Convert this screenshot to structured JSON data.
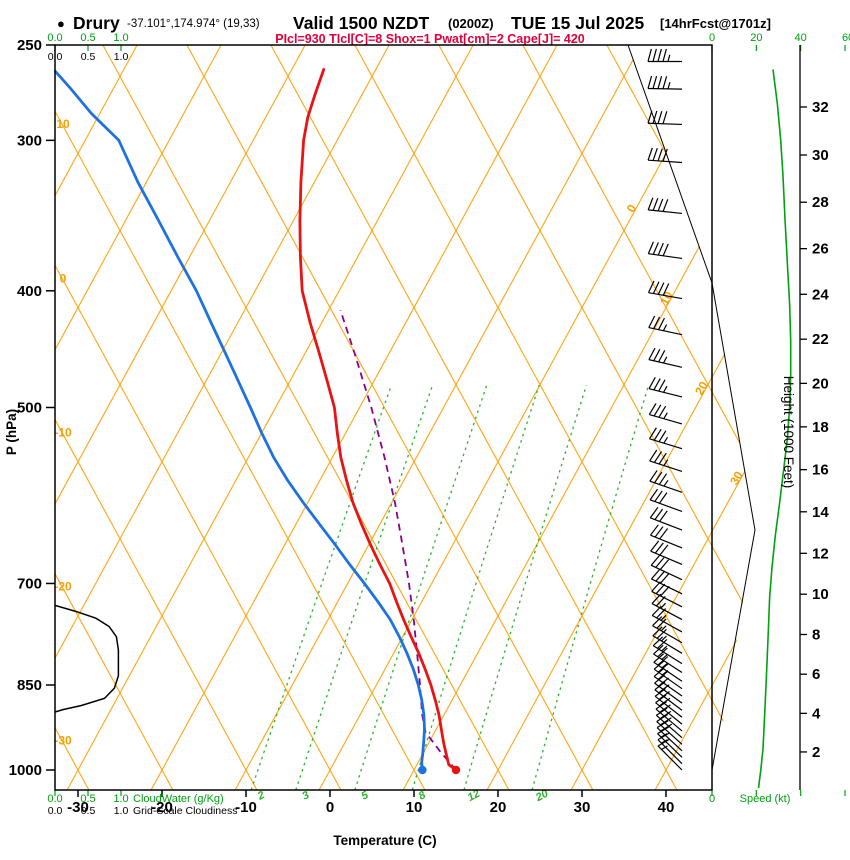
{
  "header": {
    "bullet": "●",
    "station": "Drury",
    "coords": "-37.101°,174.974° (19,33)",
    "valid": "Valid 1500 NZDT",
    "zulu": "(0200Z)",
    "date": "TUE 15 Jul 2025",
    "fcst": "[14hrFcst@1701z]",
    "indices": "PIcl=930 TIcl[C]=8 Shox=1 Pwat[cm]=2 Cape[J]= 420"
  },
  "axis_labels": {
    "pressure": "P (hPa)",
    "temperature": "Temperature (C)",
    "height": "Height (1000 Feet)",
    "speed": "Speed (kt)",
    "cloudwater": "CloudWater (g/Kg)",
    "cloudiness": "Grid-Scale Cloudiness"
  },
  "chart_data": {
    "type": "skewt_sounding",
    "pressure_axis": {
      "label": "P (hPa)",
      "scale": "log",
      "ticks": [
        250,
        300,
        400,
        500,
        700,
        850,
        1000
      ],
      "range": [
        250,
        1039
      ]
    },
    "temp_axis": {
      "label": "Temperature (C)",
      "ticks": [
        -30,
        -20,
        -10,
        0,
        10,
        20,
        30,
        40
      ]
    },
    "height_axis": {
      "label": "Height (1000 Feet)",
      "units": "kft",
      "ticks": [
        2,
        4,
        6,
        8,
        10,
        12,
        14,
        16,
        18,
        20,
        22,
        24,
        26,
        28,
        30,
        32
      ]
    },
    "speed_axis": {
      "label": "Speed (kt)",
      "range": [
        0,
        60
      ],
      "top_labels": [
        0,
        20,
        40,
        60
      ],
      "bottom_labels": [
        0
      ]
    },
    "cloud_axis": {
      "labels": [
        "0.0",
        "0.5",
        "1.0"
      ],
      "cloudwater_label": "CloudWater (g/Kg)",
      "cloudiness_label": "Grid-Scale Cloudiness"
    },
    "grid": {
      "isotherm_step": 10,
      "isotherm_label_values": [
        0,
        10,
        20,
        30
      ],
      "adiabat_label_values": [
        10,
        0,
        -10,
        -20,
        -30
      ]
    },
    "mixing_ratio_lines": [
      2,
      3,
      5,
      8,
      12,
      20
    ],
    "indices": {
      "PIcl": 930,
      "TIcl_C": 8,
      "Shox": 1,
      "Pwat_cm": 2,
      "Cape_J": 420
    },
    "surface": {
      "temp_c": 15,
      "dewpoint_c": 11
    },
    "temperature_profile": [
      [
        1000,
        15.0
      ],
      [
        990,
        13.8
      ],
      [
        970,
        12.8
      ],
      [
        950,
        11.8
      ],
      [
        925,
        10.6
      ],
      [
        900,
        9.4
      ],
      [
        875,
        8.0
      ],
      [
        850,
        6.5
      ],
      [
        825,
        4.8
      ],
      [
        800,
        3.0
      ],
      [
        775,
        1.0
      ],
      [
        750,
        -1.0
      ],
      [
        725,
        -3.0
      ],
      [
        700,
        -5.0
      ],
      [
        675,
        -7.4
      ],
      [
        650,
        -9.8
      ],
      [
        625,
        -12.2
      ],
      [
        600,
        -14.6
      ],
      [
        575,
        -16.8
      ],
      [
        550,
        -19.0
      ],
      [
        525,
        -21.0
      ],
      [
        500,
        -23.0
      ],
      [
        475,
        -25.6
      ],
      [
        450,
        -28.4
      ],
      [
        425,
        -31.4
      ],
      [
        400,
        -34.4
      ],
      [
        375,
        -36.8
      ],
      [
        350,
        -39.2
      ],
      [
        325,
        -41.6
      ],
      [
        300,
        -44.0
      ],
      [
        287,
        -45.0
      ],
      [
        275,
        -45.6
      ],
      [
        262,
        -46.2
      ]
    ],
    "dewpoint_profile": [
      [
        1000,
        11.0
      ],
      [
        985,
        10.4
      ],
      [
        970,
        10.0
      ],
      [
        950,
        9.4
      ],
      [
        925,
        8.6
      ],
      [
        900,
        7.6
      ],
      [
        875,
        6.4
      ],
      [
        850,
        5.0
      ],
      [
        825,
        3.4
      ],
      [
        800,
        1.6
      ],
      [
        775,
        -0.4
      ],
      [
        750,
        -2.6
      ],
      [
        725,
        -5.2
      ],
      [
        700,
        -8.0
      ],
      [
        675,
        -11.0
      ],
      [
        650,
        -14.0
      ],
      [
        625,
        -17.2
      ],
      [
        600,
        -20.5
      ],
      [
        575,
        -23.8
      ],
      [
        550,
        -27.0
      ],
      [
        525,
        -30.0
      ],
      [
        500,
        -33.0
      ],
      [
        475,
        -36.2
      ],
      [
        450,
        -39.6
      ],
      [
        425,
        -43.2
      ],
      [
        400,
        -47.0
      ],
      [
        375,
        -51.4
      ],
      [
        350,
        -56.0
      ],
      [
        325,
        -61.0
      ],
      [
        300,
        -66.0
      ],
      [
        285,
        -71.0
      ],
      [
        272,
        -75.0
      ],
      [
        263,
        -78.0
      ]
    ],
    "parcel_profile": [
      [
        1000,
        15.0
      ],
      [
        965,
        11.9
      ],
      [
        930,
        8.9
      ],
      [
        900,
        7.4
      ],
      [
        850,
        5.2
      ],
      [
        800,
        2.8
      ],
      [
        750,
        0.2
      ],
      [
        700,
        -2.7
      ],
      [
        650,
        -6.0
      ],
      [
        600,
        -9.6
      ],
      [
        550,
        -13.8
      ],
      [
        500,
        -18.6
      ],
      [
        450,
        -24.2
      ],
      [
        415,
        -28.6
      ]
    ],
    "cloudiness_profile": [
      [
        730,
        0
      ],
      [
        738,
        0.3
      ],
      [
        748,
        0.62
      ],
      [
        760,
        0.82
      ],
      [
        775,
        0.93
      ],
      [
        795,
        0.96
      ],
      [
        815,
        0.96
      ],
      [
        835,
        0.96
      ],
      [
        855,
        0.9
      ],
      [
        872,
        0.75
      ],
      [
        884,
        0.4
      ],
      [
        891,
        0.12
      ],
      [
        895,
        0
      ]
    ],
    "speed_profile": [
      [
        1035,
        21
      ],
      [
        1000,
        22
      ],
      [
        960,
        23
      ],
      [
        920,
        23.5
      ],
      [
        880,
        24
      ],
      [
        840,
        24.5
      ],
      [
        800,
        25
      ],
      [
        760,
        25.5
      ],
      [
        720,
        26
      ],
      [
        680,
        27
      ],
      [
        640,
        28.5
      ],
      [
        600,
        30.5
      ],
      [
        560,
        32.5
      ],
      [
        530,
        34
      ],
      [
        500,
        35
      ],
      [
        470,
        35.5
      ],
      [
        440,
        35.5
      ],
      [
        410,
        35
      ],
      [
        380,
        34
      ],
      [
        350,
        33
      ],
      [
        320,
        32
      ],
      [
        300,
        31
      ],
      [
        280,
        29.5
      ],
      [
        262,
        27.5
      ]
    ],
    "wind_barbs": [
      [
        1000,
        315,
        15
      ],
      [
        988,
        315,
        15
      ],
      [
        976,
        314,
        15
      ],
      [
        964,
        313,
        18
      ],
      [
        952,
        312,
        18
      ],
      [
        940,
        311,
        20
      ],
      [
        928,
        310,
        20
      ],
      [
        916,
        309,
        20
      ],
      [
        904,
        308,
        20
      ],
      [
        892,
        307,
        22
      ],
      [
        880,
        306,
        22
      ],
      [
        868,
        305,
        22
      ],
      [
        856,
        305,
        25
      ],
      [
        844,
        304,
        25
      ],
      [
        830,
        303,
        25
      ],
      [
        816,
        302,
        25
      ],
      [
        800,
        301,
        25
      ],
      [
        784,
        300,
        25
      ],
      [
        768,
        299,
        25
      ],
      [
        750,
        298,
        27
      ],
      [
        732,
        297,
        28
      ],
      [
        714,
        296,
        28
      ],
      [
        695,
        295,
        30
      ],
      [
        675,
        293,
        30
      ],
      [
        654,
        292,
        30
      ],
      [
        632,
        291,
        32
      ],
      [
        610,
        290,
        32
      ],
      [
        588,
        289,
        33
      ],
      [
        565,
        288,
        33
      ],
      [
        541,
        287,
        35
      ],
      [
        516,
        286,
        35
      ],
      [
        490,
        284,
        35
      ],
      [
        463,
        283,
        36
      ],
      [
        435,
        282,
        37
      ],
      [
        406,
        280,
        38
      ],
      [
        376,
        278,
        38
      ],
      [
        345,
        276,
        40
      ],
      [
        313,
        274,
        40
      ],
      [
        291,
        272,
        42
      ],
      [
        272,
        271,
        43
      ],
      [
        258,
        270,
        45
      ]
    ],
    "colors": {
      "grid": "#ffa513",
      "mixing": "#2eb22e",
      "green": "#00a010",
      "temperature": "#e81313",
      "dewpoint": "#2071e0",
      "parcel": "#8b008b",
      "cloudiness": "#000000",
      "indices": "#e0003a"
    }
  }
}
